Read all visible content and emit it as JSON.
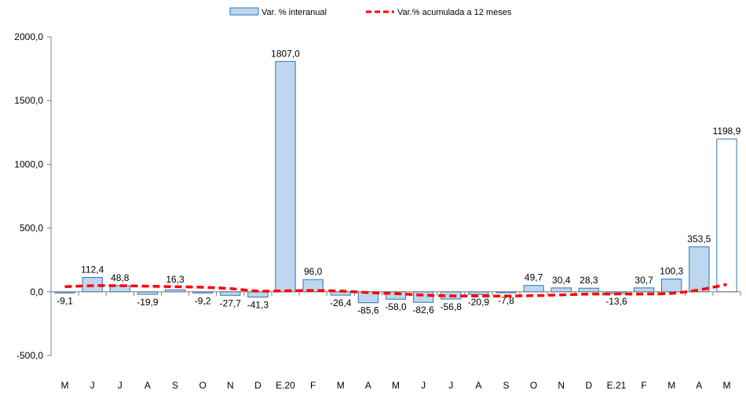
{
  "chart_data": {
    "type": "bar",
    "categories": [
      "M",
      "J",
      "J",
      "A",
      "S",
      "O",
      "N",
      "D",
      "E.20",
      "F",
      "M",
      "A",
      "M",
      "J",
      "J",
      "A",
      "S",
      "O",
      "N",
      "D",
      "E.21",
      "F",
      "M",
      "A",
      "M"
    ],
    "series": [
      {
        "name": "Var. % interanual",
        "type": "bar",
        "values": [
          -9.1,
          112.4,
          48.8,
          -19.9,
          16.3,
          -9.2,
          -27.7,
          -41.3,
          1807.0,
          96.0,
          -26.4,
          -85.6,
          -58.0,
          -82.6,
          -56.8,
          -20.9,
          -7.8,
          49.7,
          30.4,
          28.3,
          -13.6,
          30.7,
          100.3,
          353.5,
          1198.9
        ],
        "labels": [
          "-9,1",
          "112,4",
          "48,8",
          "-19,9",
          "16,3",
          "-9,2",
          "-27,7",
          "-41,3",
          "1807,0",
          "96,0",
          "-26,4",
          "-85,6",
          "-58,0",
          "-82,6",
          "-56,8",
          "-20,9",
          "-7,8",
          "49,7",
          "30,4",
          "28,3",
          "-13,6",
          "30,7",
          "100,3",
          "353,5",
          "1198,9"
        ]
      },
      {
        "name": "Var.% acumulada a 12 meses",
        "type": "line",
        "style": "dashed",
        "values": [
          40,
          48,
          48,
          44,
          40,
          36,
          25,
          6,
          8,
          10,
          6,
          -6,
          -14,
          -26,
          -32,
          -33,
          -33,
          -30,
          -24,
          -18,
          -17,
          -17,
          -12,
          15,
          58
        ]
      }
    ],
    "ylim": [
      -500,
      2000
    ],
    "yticks": [
      -500,
      0,
      500,
      1000,
      1500,
      2000
    ],
    "ytick_labels": [
      "-500,0",
      "0,0",
      "500,0",
      "1000,0",
      "1500,0",
      "2000,0"
    ],
    "legend_position": "top-center",
    "grid": false,
    "colors": {
      "bar_fill": "#bdd7ee",
      "bar_fill_last": "#ffffff",
      "bar_stroke": "#2e75b6",
      "line": "#ff0000",
      "axis": "#7f7f7f"
    }
  }
}
